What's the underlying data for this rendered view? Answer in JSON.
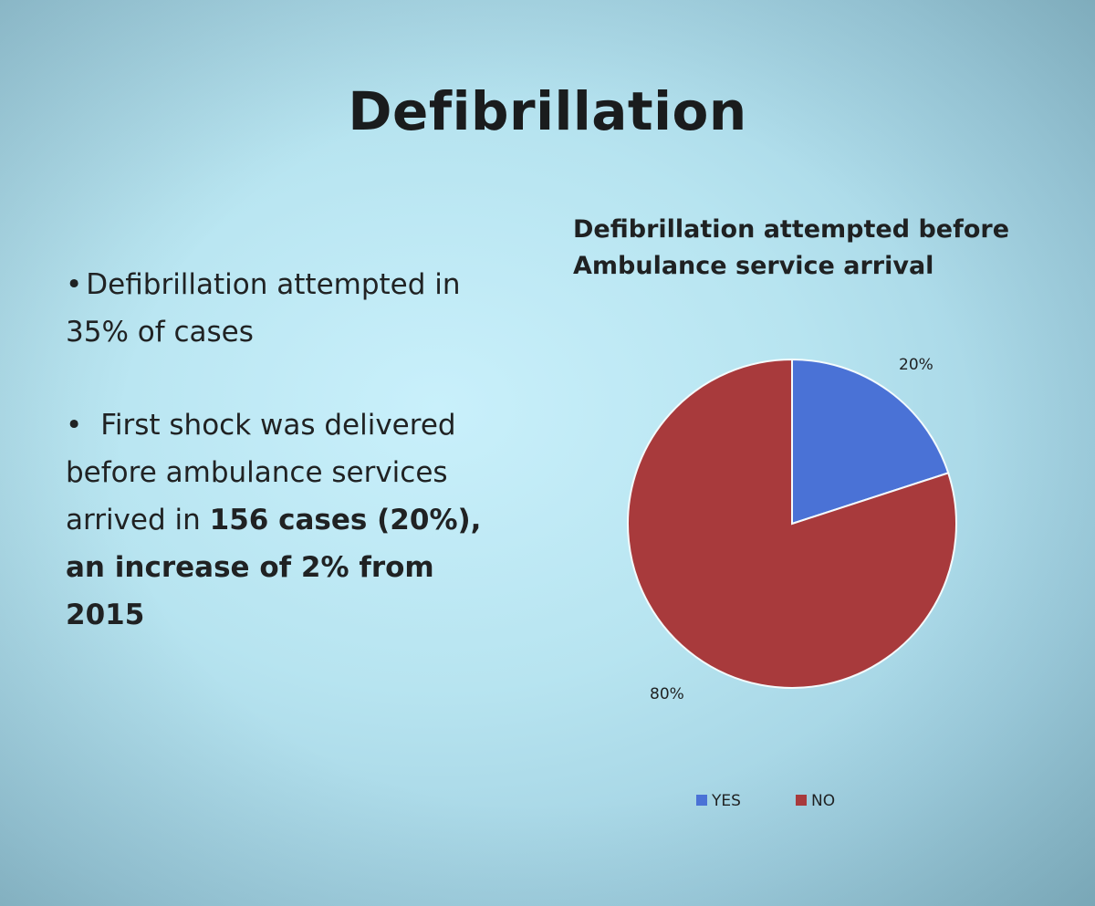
{
  "slide": {
    "title": "Defibrillation",
    "bullet1": {
      "marker": "•",
      "text": "Defibrillation attempted in 35% of cases"
    },
    "bullet2": {
      "marker": "•",
      "text_plain": "First shock was delivered before ambulance services arrived in ",
      "text_bold": "156 cases (20%), an increase of 2% from 2015"
    }
  },
  "chart_data": {
    "type": "pie",
    "title": "Defibrillation attempted before Ambulance service arrival",
    "categories": [
      "YES",
      "NO"
    ],
    "values": [
      20,
      80
    ],
    "data_labels": [
      "20%",
      "80%"
    ],
    "colors": [
      "#4a72d6",
      "#a83a3c"
    ],
    "legend_position": "bottom"
  }
}
